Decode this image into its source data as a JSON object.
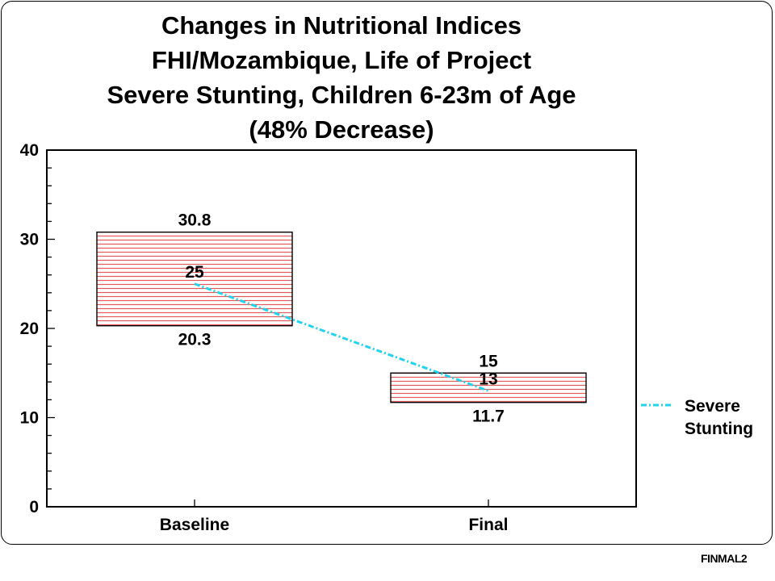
{
  "slide_code": "FINMAL2",
  "chart_data": {
    "type": "box",
    "title_lines": [
      "Changes in Nutritional Indices",
      "FHI/Mozambique, Life of Project",
      "Severe Stunting, Children 6-23m of Age",
      "(48% Decrease)"
    ],
    "categories": [
      "Baseline",
      "Final"
    ],
    "ylim": [
      0,
      40
    ],
    "yticks": [
      0,
      10,
      20,
      30,
      40
    ],
    "y_minor_step": 2,
    "grid": false,
    "boxes": [
      {
        "category": "Baseline",
        "low": 20.3,
        "high": 30.8,
        "value": 25,
        "low_label": "20.3",
        "high_label": "30.8",
        "value_label": "25"
      },
      {
        "category": "Final",
        "low": 11.7,
        "high": 15,
        "value": 13,
        "low_label": "11.7",
        "high_label": "15",
        "value_label": "13"
      }
    ],
    "series": [
      {
        "name": "Severe Stunting",
        "legend_lines": [
          "Severe",
          "Stunting"
        ],
        "values": [
          25,
          13
        ],
        "color": "#22d3ee"
      }
    ],
    "box_hatch_color": "#e05a5a",
    "legend_position": "right"
  }
}
